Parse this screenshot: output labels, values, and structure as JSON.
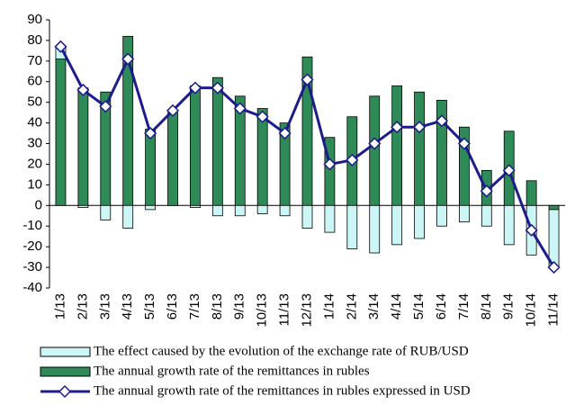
{
  "chart_data": {
    "type": "bar-line",
    "categories": [
      "1/13",
      "2/13",
      "3/13",
      "4/13",
      "5/13",
      "6/13",
      "7/13",
      "8/13",
      "9/13",
      "10/13",
      "11/13",
      "12/13",
      "1/14",
      "2/14",
      "3/14",
      "4/14",
      "5/14",
      "6/14",
      "7/14",
      "8/14",
      "9/14",
      "10/14",
      "11/14"
    ],
    "series": [
      {
        "name": "The effect caused by the evolution of the exchange rate of RUB/USD",
        "type": "bar",
        "color": "#ccf5f5",
        "values": [
          6,
          -1,
          -7,
          -11,
          -2,
          0,
          -1,
          -5,
          -5,
          -4,
          -5,
          -11,
          -13,
          -21,
          -23,
          -19,
          -16,
          -10,
          -8,
          -10,
          -19,
          -24,
          -28
        ]
      },
      {
        "name": "The annual growth rate of the remittances in rubles",
        "type": "bar",
        "color": "#2e8b57",
        "values": [
          71,
          57,
          55,
          82,
          37,
          45,
          58,
          62,
          53,
          47,
          40,
          72,
          33,
          43,
          53,
          58,
          55,
          51,
          38,
          17,
          36,
          12,
          -2
        ]
      },
      {
        "name": "The annual growth rate of the remittances in rubles expressed in USD",
        "type": "line",
        "color": "#1c1c8c",
        "values": [
          77,
          56,
          48,
          71,
          35,
          46,
          57,
          57,
          47,
          43,
          35,
          61,
          20,
          22,
          30,
          38,
          38,
          41,
          30,
          7,
          17,
          -12,
          -30
        ]
      }
    ],
    "ylim": [
      -40,
      90
    ],
    "yticks": [
      -40,
      -30,
      -20,
      -10,
      0,
      10,
      20,
      30,
      40,
      50,
      60,
      70,
      80,
      90
    ],
    "grid": false,
    "stacked": true
  }
}
